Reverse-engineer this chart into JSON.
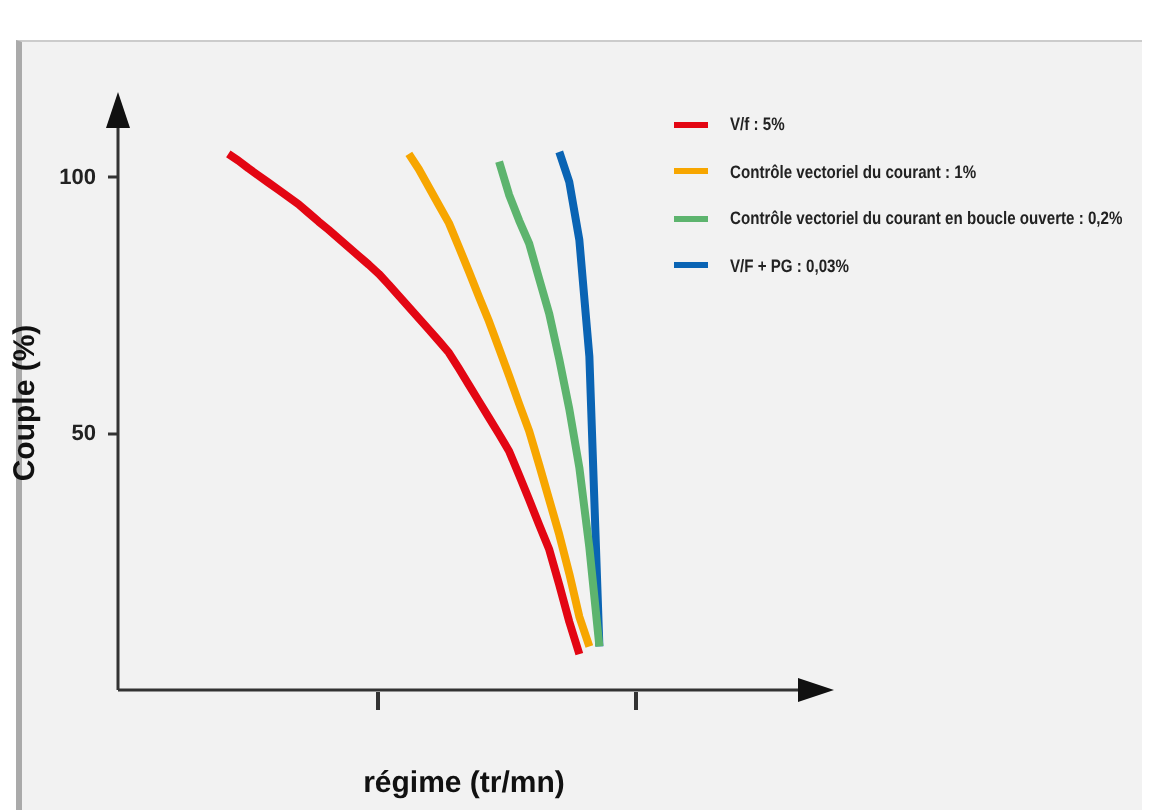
{
  "chart_data": {
    "type": "line",
    "xlabel": "régime (tr/mn)",
    "ylabel": "Couple (%)",
    "categories": [
      null,
      null,
      null,
      null,
      null,
      null,
      null,
      null,
      null,
      null,
      null,
      null,
      null,
      null,
      null,
      null,
      null,
      null,
      null,
      null,
      null,
      null,
      null,
      null,
      null,
      null,
      null,
      null,
      null,
      null,
      null,
      null,
      null,
      null,
      null,
      null,
      null,
      null,
      null,
      null,
      null,
      null,
      null,
      null,
      null,
      null,
      null,
      null,
      null,
      null,
      null,
      null,
      null,
      null,
      null,
      null,
      null,
      null,
      null,
      null,
      null,
      null,
      null,
      null,
      null,
      null,
      null,
      null,
      null,
      null
    ],
    "ylim": [
      0,
      112
    ],
    "yticks": [
      50,
      100
    ],
    "legend": "top right",
    "line_style": "solid",
    "series": [
      {
        "name": "V/f : 5%",
        "color": "#e30613",
        "values": [
          null,
          null,
          null,
          null,
          null,
          null,
          null,
          null,
          null,
          null,
          null,
          104.6,
          103.3,
          101.8,
          100.4,
          99.0,
          97.6,
          96.2,
          94.8,
          93.1,
          91.4,
          89.8,
          88.1,
          86.4,
          84.7,
          83.0,
          81.2,
          79.1,
          76.9,
          74.7,
          72.5,
          70.3,
          68.1,
          65.8,
          62.7,
          59.5,
          56.3,
          53.1,
          49.9,
          46.6,
          41.9,
          37.1,
          32.2,
          27.4,
          20.5,
          13.3,
          7,
          null,
          null,
          null,
          null,
          null,
          null,
          null,
          null,
          null,
          null,
          null,
          null,
          null,
          null,
          null,
          null,
          null,
          null,
          null,
          null,
          null,
          null,
          null
        ]
      },
      {
        "name": "Contrôle vectoriel du courant : 1%",
        "color": "#f7a600",
        "values": [
          null,
          null,
          null,
          null,
          null,
          null,
          null,
          null,
          null,
          null,
          null,
          null,
          null,
          null,
          null,
          null,
          null,
          null,
          null,
          null,
          null,
          null,
          null,
          null,
          null,
          null,
          null,
          null,
          null,
          104.6,
          101.6,
          98.1,
          94.6,
          91.1,
          86.4,
          81.6,
          76.7,
          71.9,
          66.6,
          61.3,
          55.8,
          50.5,
          43.9,
          37.1,
          30.3,
          22.7,
          14.3,
          8.5,
          null,
          null,
          null,
          null,
          null,
          null,
          null,
          null,
          null,
          null,
          null,
          null,
          null,
          null,
          null,
          null,
          null,
          null,
          null,
          null,
          null,
          null
        ]
      },
      {
        "name": "Contrôle vectoriel du courant en boucle ouverte : 0,2%",
        "color": "#5db46e",
        "values": [
          null,
          null,
          null,
          null,
          null,
          null,
          null,
          null,
          null,
          null,
          null,
          null,
          null,
          null,
          null,
          null,
          null,
          null,
          null,
          null,
          null,
          null,
          null,
          null,
          null,
          null,
          null,
          null,
          null,
          null,
          null,
          null,
          null,
          null,
          null,
          null,
          null,
          null,
          103.1,
          96.6,
          91.6,
          87.1,
          80.2,
          73.4,
          64.5,
          54.8,
          43.4,
          27.8,
          8.5,
          null,
          null,
          null,
          null,
          null,
          null,
          null,
          null,
          null,
          null,
          null,
          null,
          null,
          null,
          null,
          null,
          null,
          null,
          null,
          null,
          null
        ]
      },
      {
        "name": "V/F + PG : 0,03%",
        "color": "#0a64b4",
        "values": [
          null,
          null,
          null,
          null,
          null,
          null,
          null,
          null,
          null,
          null,
          null,
          null,
          null,
          null,
          null,
          null,
          null,
          null,
          null,
          null,
          null,
          null,
          null,
          null,
          null,
          null,
          null,
          null,
          null,
          null,
          null,
          null,
          null,
          null,
          null,
          null,
          null,
          null,
          null,
          null,
          null,
          null,
          null,
          null,
          105,
          99.1,
          87.8,
          65.1,
          8.5,
          null,
          null,
          null,
          null,
          null,
          null,
          null,
          null,
          null,
          null,
          null,
          null,
          null,
          null,
          null,
          null,
          null,
          null,
          null,
          null,
          null
        ]
      }
    ]
  }
}
